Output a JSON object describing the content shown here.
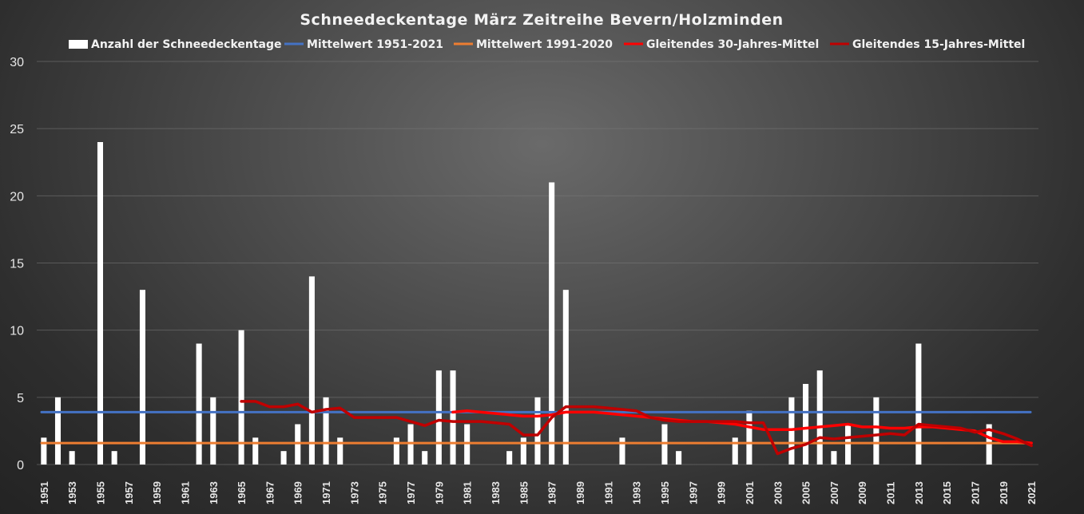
{
  "chart_data": {
    "type": "bar",
    "title": "Schneedeckentage  März Zeitreihe Bevern/Holzminden",
    "ylim": [
      0,
      30
    ],
    "yticks": [
      0,
      5,
      10,
      15,
      20,
      25,
      30
    ],
    "grid": true,
    "legend_position": "top",
    "x": [
      1951,
      1952,
      1953,
      1954,
      1955,
      1956,
      1957,
      1958,
      1959,
      1960,
      1961,
      1962,
      1963,
      1964,
      1965,
      1966,
      1967,
      1968,
      1969,
      1970,
      1971,
      1972,
      1973,
      1974,
      1975,
      1976,
      1977,
      1978,
      1979,
      1980,
      1981,
      1982,
      1983,
      1984,
      1985,
      1986,
      1987,
      1988,
      1989,
      1990,
      1991,
      1992,
      1993,
      1994,
      1995,
      1996,
      1997,
      1998,
      1999,
      2000,
      2001,
      2002,
      2003,
      2004,
      2005,
      2006,
      2007,
      2008,
      2009,
      2010,
      2011,
      2012,
      2013,
      2014,
      2015,
      2016,
      2017,
      2018,
      2019,
      2020,
      2021
    ],
    "xtick_labels": [
      "1951",
      "1953",
      "1955",
      "1957",
      "1959",
      "1961",
      "1963",
      "1965",
      "1967",
      "1969",
      "1971",
      "1973",
      "1975",
      "1977",
      "1979",
      "1981",
      "1983",
      "1985",
      "1987",
      "1989",
      "1991",
      "1993",
      "1995",
      "1997",
      "1999",
      "2001",
      "2003",
      "2005",
      "2007",
      "2009",
      "2011",
      "2013",
      "2015",
      "2017",
      "2019",
      "2021"
    ],
    "series": [
      {
        "name": "Anzahl der Schneedeckentage",
        "type": "bar",
        "color": "#ffffff",
        "values": [
          2,
          5,
          1,
          0,
          24,
          1,
          0,
          13,
          0,
          0,
          0,
          9,
          5,
          0,
          10,
          2,
          0,
          1,
          3,
          14,
          5,
          2,
          0,
          0,
          0,
          2,
          3,
          1,
          7,
          7,
          3,
          0,
          0,
          1,
          2,
          5,
          21,
          13,
          0,
          0,
          0,
          2,
          0,
          0,
          3,
          1,
          0,
          0,
          0,
          2,
          4,
          0,
          0,
          5,
          6,
          7,
          1,
          3,
          0,
          5,
          0,
          0,
          9,
          0,
          0,
          0,
          0,
          3,
          0,
          0,
          0
        ]
      },
      {
        "name": "Mittelwert 1951-2021",
        "type": "line",
        "color": "#4472c4",
        "values": [
          3.9,
          3.9,
          3.9,
          3.9,
          3.9,
          3.9,
          3.9,
          3.9,
          3.9,
          3.9,
          3.9,
          3.9,
          3.9,
          3.9,
          3.9,
          3.9,
          3.9,
          3.9,
          3.9,
          3.9,
          3.9,
          3.9,
          3.9,
          3.9,
          3.9,
          3.9,
          3.9,
          3.9,
          3.9,
          3.9,
          3.9,
          3.9,
          3.9,
          3.9,
          3.9,
          3.9,
          3.9,
          3.9,
          3.9,
          3.9,
          3.9,
          3.9,
          3.9,
          3.9,
          3.9,
          3.9,
          3.9,
          3.9,
          3.9,
          3.9,
          3.9,
          3.9,
          3.9,
          3.9,
          3.9,
          3.9,
          3.9,
          3.9,
          3.9,
          3.9,
          3.9,
          3.9,
          3.9,
          3.9,
          3.9,
          3.9,
          3.9,
          3.9,
          3.9,
          3.9,
          3.9
        ]
      },
      {
        "name": "Mittelwert 1991-2020",
        "type": "line",
        "color": "#ed7d31",
        "values": [
          1.6,
          1.6,
          1.6,
          1.6,
          1.6,
          1.6,
          1.6,
          1.6,
          1.6,
          1.6,
          1.6,
          1.6,
          1.6,
          1.6,
          1.6,
          1.6,
          1.6,
          1.6,
          1.6,
          1.6,
          1.6,
          1.6,
          1.6,
          1.6,
          1.6,
          1.6,
          1.6,
          1.6,
          1.6,
          1.6,
          1.6,
          1.6,
          1.6,
          1.6,
          1.6,
          1.6,
          1.6,
          1.6,
          1.6,
          1.6,
          1.6,
          1.6,
          1.6,
          1.6,
          1.6,
          1.6,
          1.6,
          1.6,
          1.6,
          1.6,
          1.6,
          1.6,
          1.6,
          1.6,
          1.6,
          1.6,
          1.6,
          1.6,
          1.6,
          1.6,
          1.6,
          1.6,
          1.6,
          1.6,
          1.6,
          1.6,
          1.6,
          1.6,
          1.6,
          1.6,
          1.6
        ]
      },
      {
        "name": "Gleitendes 30-Jahres-Mittel",
        "type": "line",
        "color": "#ff0000",
        "values": [
          null,
          null,
          null,
          null,
          null,
          null,
          null,
          null,
          null,
          null,
          null,
          null,
          null,
          null,
          null,
          null,
          null,
          null,
          null,
          null,
          null,
          null,
          null,
          null,
          null,
          null,
          null,
          null,
          null,
          3.9,
          4.0,
          3.9,
          3.8,
          3.7,
          3.6,
          3.6,
          3.7,
          3.9,
          3.9,
          3.9,
          3.8,
          3.7,
          3.6,
          3.5,
          3.4,
          3.3,
          3.2,
          3.2,
          3.1,
          3.0,
          2.8,
          2.6,
          2.6,
          2.6,
          2.7,
          2.8,
          2.9,
          3.0,
          2.8,
          2.8,
          2.7,
          2.7,
          2.8,
          2.8,
          2.7,
          2.6,
          2.5,
          2.0,
          1.7,
          1.7,
          1.6
        ]
      },
      {
        "name": "Gleitendes 15-Jahres-Mittel",
        "type": "line",
        "color": "#c00000",
        "values": [
          null,
          null,
          null,
          null,
          null,
          null,
          null,
          null,
          null,
          null,
          null,
          null,
          null,
          null,
          4.7,
          4.7,
          4.3,
          4.3,
          4.5,
          3.9,
          4.1,
          4.2,
          3.5,
          3.5,
          3.5,
          3.5,
          3.2,
          2.9,
          3.3,
          3.2,
          3.2,
          3.2,
          3.1,
          3.0,
          2.2,
          2.2,
          3.5,
          4.3,
          4.3,
          4.3,
          4.2,
          4.1,
          4.0,
          3.5,
          3.3,
          3.2,
          3.2,
          3.2,
          3.2,
          3.2,
          3.1,
          3.1,
          0.8,
          1.2,
          1.5,
          2.0,
          1.9,
          2.0,
          2.1,
          2.2,
          2.3,
          2.2,
          3.0,
          2.9,
          2.8,
          2.7,
          2.4,
          2.6,
          2.3,
          1.9,
          1.4
        ]
      }
    ]
  }
}
